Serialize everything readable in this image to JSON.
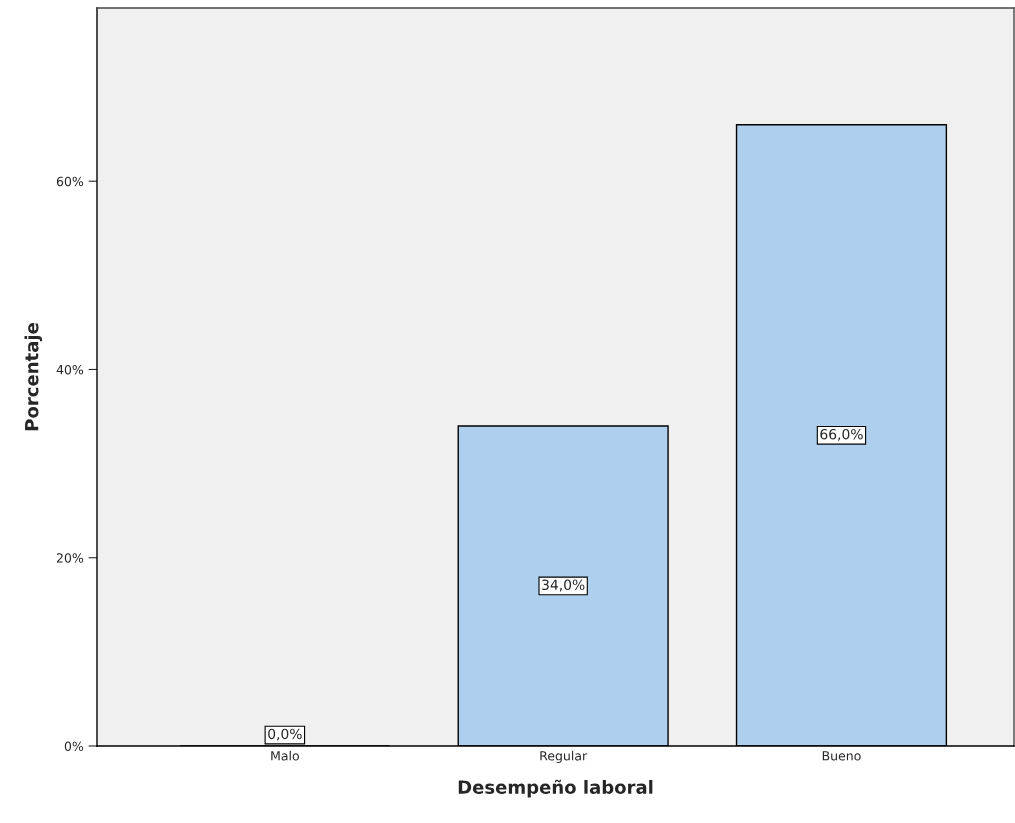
{
  "chart_data": {
    "type": "bar",
    "xlabel": "Desempeño laboral",
    "ylabel": "Porcentaje",
    "categories": [
      "Malo",
      "Regular",
      "Bueno"
    ],
    "values": [
      0,
      34,
      66
    ],
    "value_labels": [
      "0,0%",
      "34,0%",
      "66,0%"
    ],
    "color": "#aecfed",
    "ylim": [
      0,
      78.4
    ],
    "yticks": [
      {
        "value": 0,
        "label": "0%"
      },
      {
        "value": 20,
        "label": "20%"
      },
      {
        "value": 40,
        "label": "40%"
      },
      {
        "value": 60,
        "label": "60%"
      }
    ],
    "grid": false
  }
}
